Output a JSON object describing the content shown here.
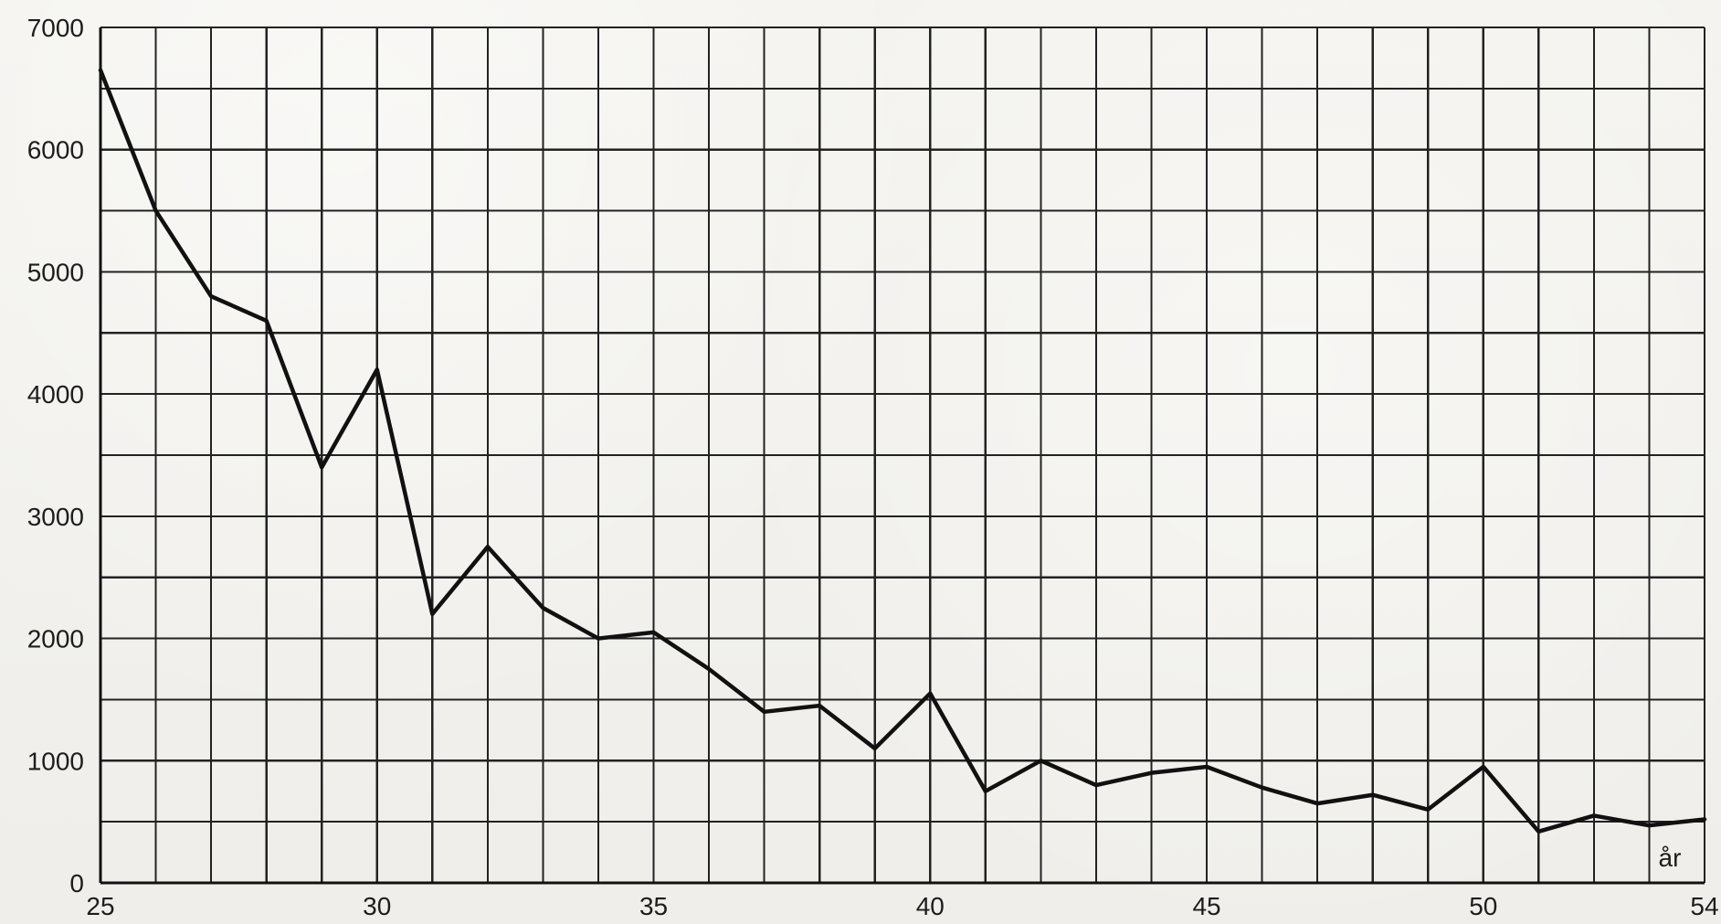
{
  "chart_data": {
    "type": "line",
    "x": [
      25,
      26,
      27,
      28,
      29,
      30,
      31,
      32,
      33,
      34,
      35,
      36,
      37,
      38,
      39,
      40,
      41,
      42,
      43,
      44,
      45,
      46,
      47,
      48,
      49,
      50,
      51,
      52,
      53,
      54
    ],
    "series": [
      {
        "values": [
          6650,
          5500,
          4800,
          4600,
          3400,
          4200,
          2200,
          2750,
          2250,
          2000,
          2050,
          1750,
          1400,
          1450,
          1100,
          1550,
          750,
          1000,
          800,
          900,
          950,
          780,
          650,
          720,
          600,
          950,
          420,
          550,
          470,
          520
        ]
      }
    ],
    "xlim": [
      25,
      54
    ],
    "ylim": [
      0,
      7000
    ],
    "x_ticks": [
      25,
      30,
      35,
      40,
      45,
      50,
      54
    ],
    "y_ticks": [
      0,
      1000,
      2000,
      3000,
      4000,
      5000,
      6000,
      7000
    ],
    "x_axis_unit_label": "år",
    "grid": true,
    "line_color": "#111111",
    "background_color": "#f3f2ee"
  }
}
